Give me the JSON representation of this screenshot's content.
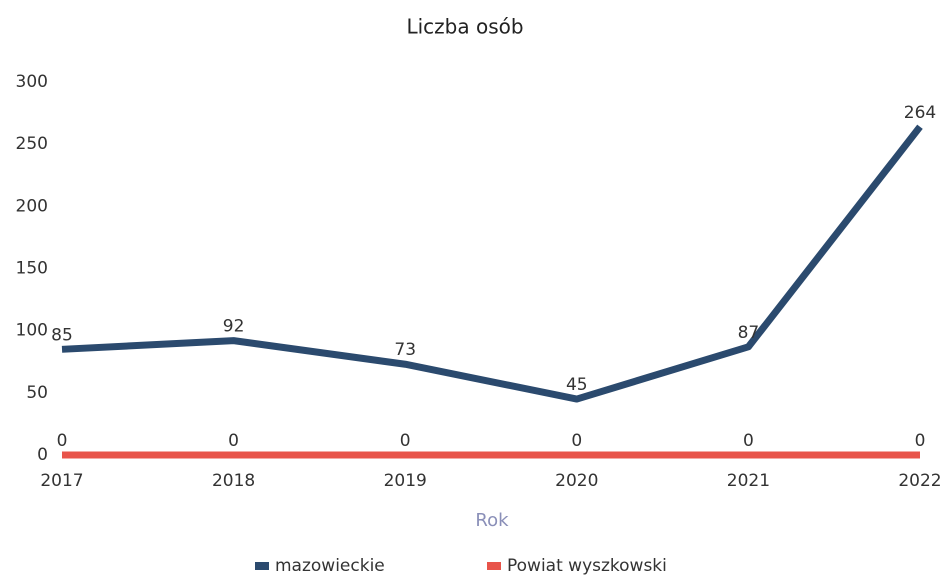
{
  "chart_data": {
    "type": "line",
    "title": "Liczba osób",
    "x_label": "Rok",
    "categories": [
      "2017",
      "2018",
      "2019",
      "2020",
      "2021",
      "2022"
    ],
    "series": [
      {
        "name": "mazowieckie",
        "color": "#2b4a6e",
        "values": [
          85,
          92,
          73,
          45,
          87,
          264
        ]
      },
      {
        "name": "Powiat wyszkowski",
        "color": "#e8544a",
        "values": [
          0,
          0,
          0,
          0,
          0,
          0
        ]
      }
    ],
    "ylim": [
      0,
      300
    ],
    "yticks": [
      0,
      50,
      100,
      150,
      200,
      250,
      300
    ],
    "grid": false,
    "legend": "bottom"
  }
}
